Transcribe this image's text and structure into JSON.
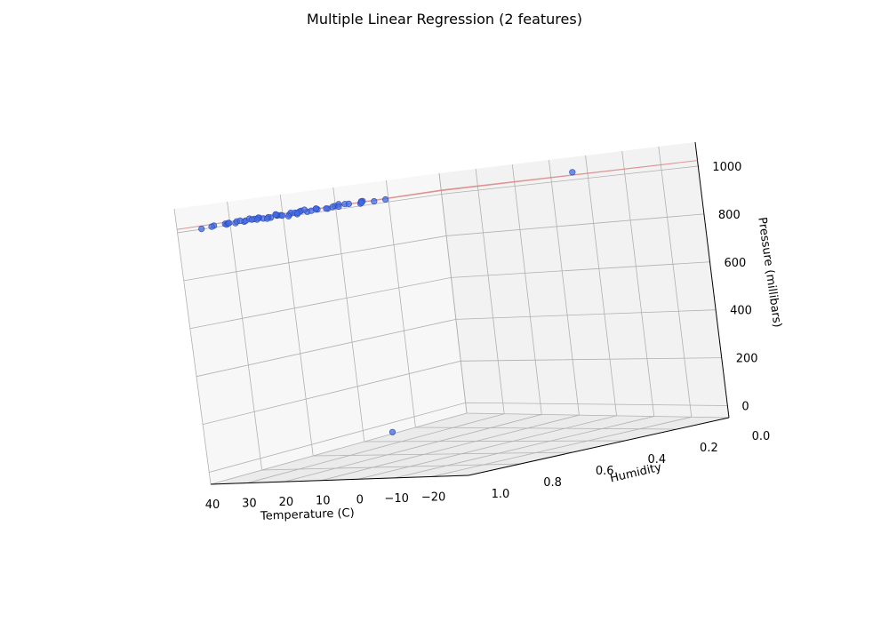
{
  "chart_data": {
    "type": "scatter",
    "title": "Multiple Linear Regression (2 features)",
    "axes": {
      "x": {
        "label": "Temperature (C)",
        "ticks": [
          40,
          30,
          20,
          10,
          0,
          -10,
          -20
        ],
        "tick_labels": [
          "40",
          "30",
          "20",
          "10",
          "0",
          "−10",
          "−20"
        ],
        "range": [
          -30,
          40
        ]
      },
      "y": {
        "label": "Humidity",
        "ticks": [
          1.0,
          0.8,
          0.6,
          0.4,
          0.2,
          0.0
        ],
        "tick_labels": [
          "1.0",
          "0.8",
          "0.6",
          "0.4",
          "0.2",
          "0.0"
        ],
        "range": [
          0.0,
          1.0
        ]
      },
      "z": {
        "label": "Pressure (millibars)",
        "ticks": [
          0,
          200,
          400,
          600,
          800,
          1000
        ],
        "tick_labels": [
          "0",
          "200",
          "400",
          "600",
          "800",
          "1000"
        ],
        "range": [
          -50,
          1100
        ]
      }
    },
    "grid": true,
    "colors": {
      "points": "#4169e1",
      "plane": "#d98080"
    },
    "points": [
      [
        -17,
        0.3,
        1035
      ],
      [
        25,
        0.5,
        20
      ],
      [
        -13,
        0.97,
        1016
      ],
      [
        -10,
        0.97,
        1015
      ],
      [
        -7,
        0.97,
        1022
      ],
      [
        -5,
        0.95,
        1014
      ],
      [
        -3,
        0.98,
        1020
      ],
      [
        -1,
        0.99,
        1018
      ],
      [
        1,
        0.97,
        1016
      ],
      [
        3,
        0.96,
        1012
      ],
      [
        5,
        0.97,
        1015
      ],
      [
        7,
        0.98,
        1011
      ],
      [
        8,
        0.95,
        1013
      ],
      [
        10,
        0.96,
        1018
      ],
      [
        11,
        0.99,
        1010
      ],
      [
        12,
        0.97,
        1016
      ],
      [
        13,
        0.94,
        1014
      ],
      [
        14,
        0.98,
        1012
      ],
      [
        15,
        0.96,
        1010
      ],
      [
        16,
        0.99,
        1008
      ],
      [
        17,
        0.95,
        1013
      ],
      [
        18,
        0.97,
        1011
      ],
      [
        19,
        0.99,
        1014
      ],
      [
        20,
        0.96,
        1009
      ],
      [
        21,
        0.98,
        1012
      ],
      [
        22,
        0.95,
        1015
      ],
      [
        23,
        0.99,
        1007
      ],
      [
        24,
        0.97,
        1010
      ],
      [
        25,
        0.94,
        1016
      ],
      [
        26,
        0.98,
        1006
      ],
      [
        27,
        0.96,
        1012
      ],
      [
        28,
        0.99,
        1009
      ],
      [
        29,
        0.97,
        1005
      ],
      [
        30,
        0.95,
        1010
      ],
      [
        31,
        0.99,
        1008
      ],
      [
        33,
        0.97,
        1005
      ],
      [
        35,
        0.98,
        1002
      ],
      [
        -8,
        0.99,
        1021
      ],
      [
        -4,
        0.98,
        1019
      ],
      [
        0,
        0.96,
        1023
      ],
      [
        4,
        0.99,
        1017
      ],
      [
        6,
        0.96,
        1019
      ],
      [
        9,
        0.98,
        1016
      ],
      [
        15,
        0.98,
        1015
      ],
      [
        18,
        0.94,
        1017
      ],
      [
        21,
        0.97,
        1008
      ],
      [
        24,
        0.99,
        1013
      ],
      [
        27,
        0.99,
        1010
      ],
      [
        9,
        0.99,
        1007
      ],
      [
        12,
        0.98,
        1004
      ],
      [
        -6,
        0.96,
        1017
      ],
      [
        -2,
        0.99,
        1014
      ],
      [
        2,
        0.98,
        1013
      ],
      [
        16,
        0.97,
        1018
      ],
      [
        19,
        0.96,
        1006
      ],
      [
        23,
        0.96,
        1011
      ],
      [
        11,
        0.96,
        1012
      ],
      [
        7,
        0.99,
        1020
      ]
    ],
    "regression_plane": {
      "intercept": 1020.4,
      "coef_temperature": -0.1,
      "coef_humidity": -2.6
    }
  }
}
